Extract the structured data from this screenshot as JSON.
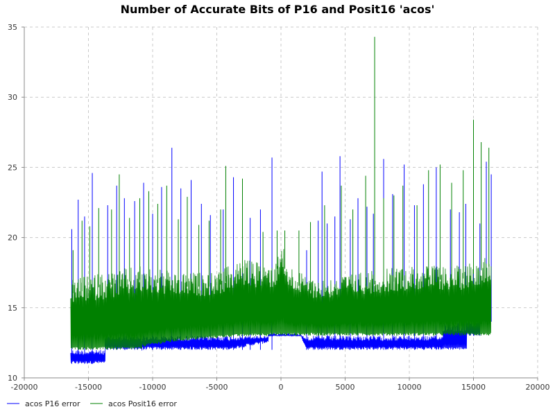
{
  "chart_data": {
    "type": "line",
    "title": "Number of Accurate Bits of P16 and Posit16 'acos'",
    "xlabel": "",
    "ylabel": "",
    "xlim": [
      -20000,
      20000
    ],
    "ylim": [
      10,
      35
    ],
    "xticks": [
      "-20000",
      "-15000",
      "-10000",
      "-5000",
      "0",
      "5000",
      "10000",
      "15000",
      "20000"
    ],
    "yticks": [
      "10",
      "15",
      "20",
      "25",
      "30",
      "35"
    ],
    "grid": true,
    "legend_position": "bottom-left",
    "series": [
      {
        "name": "acos P16 error",
        "color": "#0000ff",
        "band_floor": [
          [
            -16384,
            11
          ],
          [
            -13700,
            11
          ],
          [
            -13700,
            12
          ],
          [
            -10900,
            12
          ],
          [
            -10900,
            12
          ],
          [
            -10900,
            12
          ],
          [
            -10800,
            11.8
          ],
          [
            -10800,
            12
          ],
          [
            -8000,
            12
          ],
          [
            -4000,
            12
          ],
          [
            -1000,
            12.5
          ],
          [
            -1000,
            13
          ],
          [
            1500,
            13
          ],
          [
            2000,
            12
          ],
          [
            5000,
            12
          ],
          [
            12600,
            12
          ],
          [
            12600,
            12
          ],
          [
            14500,
            12
          ],
          [
            14500,
            13
          ],
          [
            15500,
            13
          ],
          [
            15500,
            14
          ],
          [
            16384,
            14
          ]
        ],
        "band_ceiling": [
          [
            -16384,
            12
          ],
          [
            -13700,
            12
          ],
          [
            -13700,
            13
          ],
          [
            -10900,
            13
          ],
          [
            -10800,
            13
          ],
          [
            -10800,
            13
          ],
          [
            -1000,
            13
          ],
          [
            5000,
            13
          ],
          [
            12600,
            13
          ],
          [
            12600,
            14
          ],
          [
            15500,
            14
          ],
          [
            15500,
            15
          ],
          [
            16384,
            15
          ]
        ],
        "spikes": [
          [
            -16300,
            20.6
          ],
          [
            -15800,
            22.7
          ],
          [
            -15300,
            21.5
          ],
          [
            -14700,
            24.6
          ],
          [
            -13500,
            22.3
          ],
          [
            -12800,
            23.7
          ],
          [
            -12200,
            22.8
          ],
          [
            -11400,
            22.6
          ],
          [
            -10700,
            23.9
          ],
          [
            -10000,
            21.7
          ],
          [
            -9300,
            23.6
          ],
          [
            -8500,
            26.4
          ],
          [
            -7800,
            23.5
          ],
          [
            -7000,
            24.1
          ],
          [
            -6200,
            22.4
          ],
          [
            -5500,
            21.6
          ],
          [
            -4500,
            22.0
          ],
          [
            -3700,
            24.3
          ],
          [
            -3000,
            20.3
          ],
          [
            -2400,
            21.4
          ],
          [
            -1600,
            22.0
          ],
          [
            -700,
            25.7
          ],
          [
            2000,
            19.1
          ],
          [
            2900,
            21.2
          ],
          [
            3200,
            24.7
          ],
          [
            3600,
            21.0
          ],
          [
            4200,
            21.5
          ],
          [
            4600,
            25.8
          ],
          [
            5400,
            21.3
          ],
          [
            6000,
            22.8
          ],
          [
            6700,
            22.2
          ],
          [
            7200,
            21.7
          ],
          [
            8000,
            25.6
          ],
          [
            8700,
            23.1
          ],
          [
            9600,
            25.2
          ],
          [
            10400,
            22.3
          ],
          [
            11100,
            23.8
          ],
          [
            12100,
            25.0
          ],
          [
            13200,
            22.0
          ],
          [
            13900,
            21.8
          ],
          [
            14400,
            22.4
          ],
          [
            15000,
            22.1
          ],
          [
            15500,
            21.0
          ],
          [
            16000,
            25.4
          ],
          [
            16384,
            24.5
          ]
        ]
      },
      {
        "name": "acos Posit16 error",
        "color": "#008000",
        "band_floor": [
          [
            -16384,
            12
          ],
          [
            -10900,
            12
          ],
          [
            -10800,
            12.2
          ],
          [
            -8000,
            12.6
          ],
          [
            -4000,
            12.9
          ],
          [
            -1200,
            13
          ],
          [
            -200,
            13
          ],
          [
            0,
            13
          ],
          [
            300,
            13
          ],
          [
            1500,
            13
          ],
          [
            5000,
            13
          ],
          [
            10000,
            13
          ],
          [
            16384,
            13
          ]
        ],
        "band_ceiling": [
          [
            -16384,
            17
          ],
          [
            -14000,
            17.5
          ],
          [
            -11000,
            18
          ],
          [
            -8000,
            17.5
          ],
          [
            -5000,
            17.5
          ],
          [
            -3000,
            18.5
          ],
          [
            -1500,
            18.2
          ],
          [
            -1200,
            18.2
          ],
          [
            -400,
            18.2
          ],
          [
            0,
            20.5
          ],
          [
            400,
            18.2
          ],
          [
            1500,
            17.5
          ],
          [
            3000,
            17
          ],
          [
            6000,
            17.5
          ],
          [
            10000,
            18
          ],
          [
            14000,
            18
          ],
          [
            16384,
            19
          ]
        ],
        "spikes": [
          [
            -16200,
            19.1
          ],
          [
            -15500,
            21.2
          ],
          [
            -14900,
            20.8
          ],
          [
            -14200,
            22.1
          ],
          [
            -13200,
            22.0
          ],
          [
            -12600,
            24.5
          ],
          [
            -11800,
            21.4
          ],
          [
            -11000,
            22.8
          ],
          [
            -10300,
            23.3
          ],
          [
            -9600,
            22.4
          ],
          [
            -8900,
            23.7
          ],
          [
            -8000,
            21.3
          ],
          [
            -7300,
            22.9
          ],
          [
            -6400,
            20.9
          ],
          [
            -5600,
            21.2
          ],
          [
            -4700,
            22.0
          ],
          [
            -4300,
            25.1
          ],
          [
            -3000,
            24.2
          ],
          [
            -1400,
            20.4
          ],
          [
            -300,
            20.5
          ],
          [
            300,
            20.5
          ],
          [
            1400,
            20.5
          ],
          [
            2300,
            21.1
          ],
          [
            3400,
            22.3
          ],
          [
            4700,
            23.7
          ],
          [
            5600,
            22.0
          ],
          [
            6600,
            24.4
          ],
          [
            7300,
            34.3
          ],
          [
            8000,
            22.8
          ],
          [
            8800,
            23.0
          ],
          [
            9500,
            23.7
          ],
          [
            10600,
            22.3
          ],
          [
            11500,
            24.8
          ],
          [
            12400,
            25.2
          ],
          [
            13300,
            23.9
          ],
          [
            14200,
            24.8
          ],
          [
            15000,
            28.4
          ],
          [
            15600,
            26.8
          ],
          [
            16200,
            26.4
          ]
        ]
      }
    ]
  }
}
